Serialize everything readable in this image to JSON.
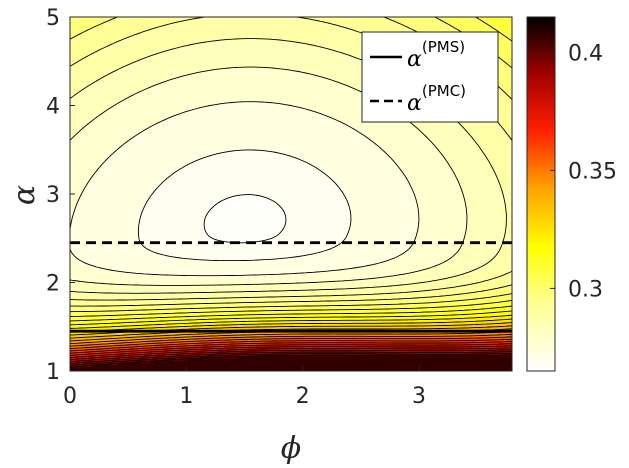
{
  "chart_data": {
    "type": "heatmap",
    "subtype": "filled-contour",
    "colormap": "hot (reversed)",
    "xlabel": "ϕ",
    "ylabel": "α",
    "xlim": [
      0,
      3.8
    ],
    "ylim": [
      1,
      5
    ],
    "x_ticks": [
      "0",
      "1",
      "2",
      "3"
    ],
    "y_ticks": [
      "1",
      "2",
      "3",
      "4",
      "5"
    ],
    "colorbar": {
      "range": [
        0.265,
        0.415
      ],
      "ticks": [
        "0.3",
        "0.35",
        "0.4"
      ]
    },
    "contour_levels": [
      0.2675,
      0.27,
      0.275,
      0.28,
      0.285,
      0.29,
      0.295,
      0.3,
      0.305,
      0.31,
      0.315,
      0.32,
      0.325,
      0.33,
      0.335,
      0.34,
      0.345,
      0.35,
      0.355,
      0.36,
      0.365,
      0.37,
      0.375,
      0.38,
      0.385,
      0.39,
      0.395,
      0.4
    ],
    "lines": [
      {
        "name": "α",
        "superscript": "(PMS)",
        "style": "solid",
        "alpha": 1.45
      },
      {
        "name": "α",
        "superscript": "(PMC)",
        "style": "dashed",
        "alpha": 2.45
      }
    ],
    "legend_position": "top-right",
    "grid": false
  }
}
